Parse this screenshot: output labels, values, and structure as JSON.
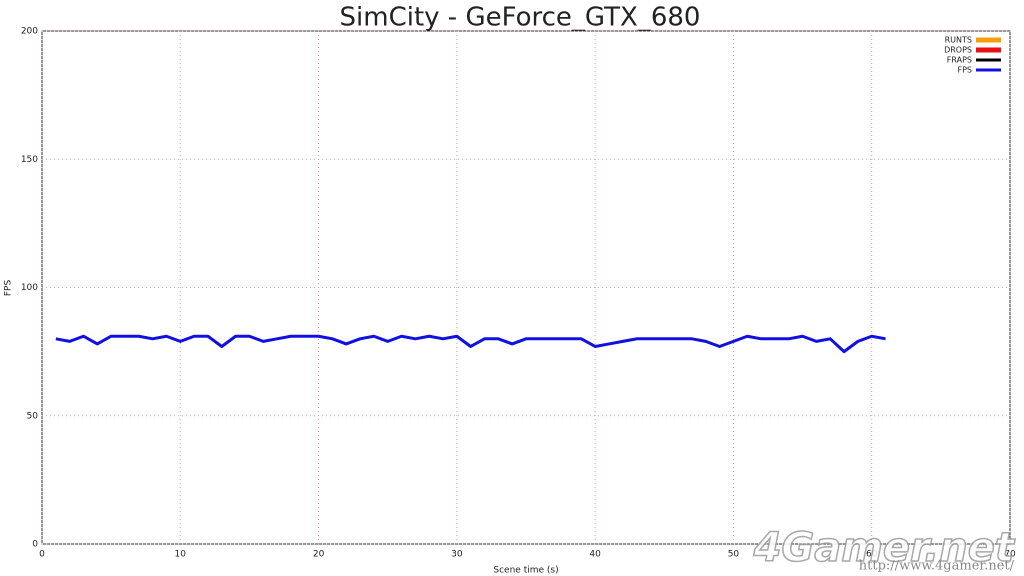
{
  "chart_data": {
    "type": "line",
    "title": "SimCity - GeForce_GTX_680",
    "x_label": "Scene time (s)",
    "y_label": "FPS",
    "x": [
      1,
      2,
      3,
      4,
      5,
      6,
      7,
      8,
      9,
      10,
      11,
      12,
      13,
      14,
      15,
      16,
      17,
      18,
      19,
      20,
      21,
      22,
      23,
      24,
      25,
      26,
      27,
      28,
      29,
      30,
      31,
      32,
      33,
      34,
      35,
      36,
      37,
      38,
      39,
      40,
      41,
      42,
      43,
      44,
      45,
      46,
      47,
      48,
      49,
      50,
      51,
      52,
      53,
      54,
      55,
      56,
      57,
      58,
      59,
      60,
      61
    ],
    "series": [
      {
        "name": "FPS",
        "color": "#1010e0",
        "values": [
          80,
          79,
          81,
          78,
          81,
          81,
          81,
          80,
          81,
          79,
          81,
          81,
          77,
          81,
          81,
          79,
          80,
          81,
          81,
          81,
          80,
          78,
          80,
          81,
          79,
          81,
          80,
          81,
          80,
          81,
          77,
          80,
          80,
          78,
          80,
          80,
          80,
          80,
          80,
          77,
          78,
          79,
          80,
          80,
          80,
          80,
          80,
          79,
          77,
          79,
          81,
          80,
          80,
          80,
          81,
          79,
          80,
          75,
          79,
          81,
          80
        ]
      }
    ],
    "legend_entries": [
      {
        "name": "RUNTS",
        "color": "#f5a000"
      },
      {
        "name": "DROPS",
        "color": "#e81010"
      },
      {
        "name": "FRAPS",
        "color": "#000000"
      },
      {
        "name": "FPS",
        "color": "#1010e0"
      }
    ],
    "xlim": [
      0,
      70
    ],
    "xticks": [
      0,
      10,
      20,
      30,
      40,
      50,
      60,
      70
    ],
    "ylim": [
      0,
      200
    ],
    "yticks": [
      0,
      50,
      100,
      150,
      200
    ],
    "grid": true,
    "legend_position": "top-right",
    "watermark": "4Gamer.net",
    "watermark_url": "http://www.4gamer.net/"
  }
}
